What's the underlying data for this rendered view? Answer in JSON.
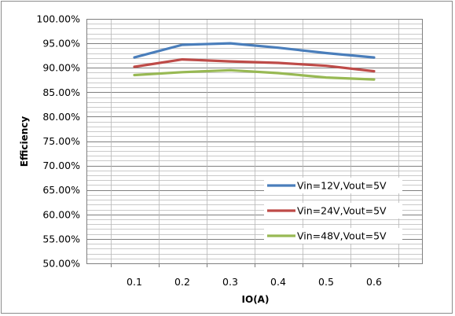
{
  "chart_data": {
    "type": "line",
    "title": "",
    "xlabel": "IO(A)",
    "ylabel": "Efficiency",
    "categories": [
      "0.1",
      "0.2",
      "0.3",
      "0.4",
      "0.5",
      "0.6"
    ],
    "ylim": [
      0.5,
      1.0
    ],
    "y_major_step": 0.05,
    "y_minor_step": 0.01,
    "y_tick_labels": [
      "50.00%",
      "55.00%",
      "60.00%",
      "65.00%",
      "70.00%",
      "75.00%",
      "80.00%",
      "85.00%",
      "90.00%",
      "95.00%",
      "100.00%"
    ],
    "grid": true,
    "legend_position": "bottom-right",
    "series": [
      {
        "name": "Vin=12V,Vout=5V",
        "color": "#4a7ebb",
        "values": [
          0.921,
          0.947,
          0.95,
          0.941,
          0.93,
          0.921
        ]
      },
      {
        "name": "Vin=24V,Vout=5V",
        "color": "#be4b48",
        "values": [
          0.902,
          0.917,
          0.913,
          0.91,
          0.904,
          0.893
        ]
      },
      {
        "name": "Vin=48V,Vout=5V",
        "color": "#98b954",
        "values": [
          0.885,
          0.891,
          0.895,
          0.889,
          0.88,
          0.876
        ]
      }
    ]
  }
}
